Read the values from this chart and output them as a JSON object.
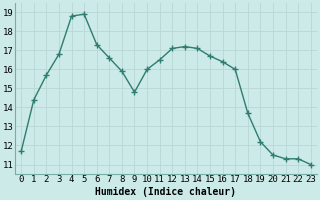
{
  "x": [
    0,
    1,
    2,
    3,
    4,
    5,
    6,
    7,
    8,
    9,
    10,
    11,
    12,
    13,
    14,
    15,
    16,
    17,
    18,
    19,
    20,
    21,
    22,
    23
  ],
  "y": [
    11.7,
    14.4,
    15.7,
    16.8,
    18.8,
    18.9,
    17.3,
    16.6,
    15.9,
    14.8,
    16.0,
    16.5,
    17.1,
    17.2,
    17.1,
    16.7,
    16.4,
    16.0,
    13.7,
    12.2,
    11.5,
    11.3,
    11.3,
    11.0
  ],
  "line_color": "#2e7d6e",
  "marker": "+",
  "marker_size": 4,
  "bg_color": "#cceae7",
  "grid_color": "#b8d8d4",
  "xlabel": "Humidex (Indice chaleur)",
  "xlim": [
    -0.5,
    23.5
  ],
  "ylim": [
    10.5,
    19.5
  ],
  "yticks": [
    11,
    12,
    13,
    14,
    15,
    16,
    17,
    18,
    19
  ],
  "xtick_labels": [
    "0",
    "1",
    "2",
    "3",
    "4",
    "5",
    "6",
    "7",
    "8",
    "9",
    "10",
    "11",
    "12",
    "13",
    "14",
    "15",
    "16",
    "17",
    "18",
    "19",
    "20",
    "21",
    "22",
    "23"
  ],
  "label_fontsize": 7,
  "tick_fontsize": 6.5
}
